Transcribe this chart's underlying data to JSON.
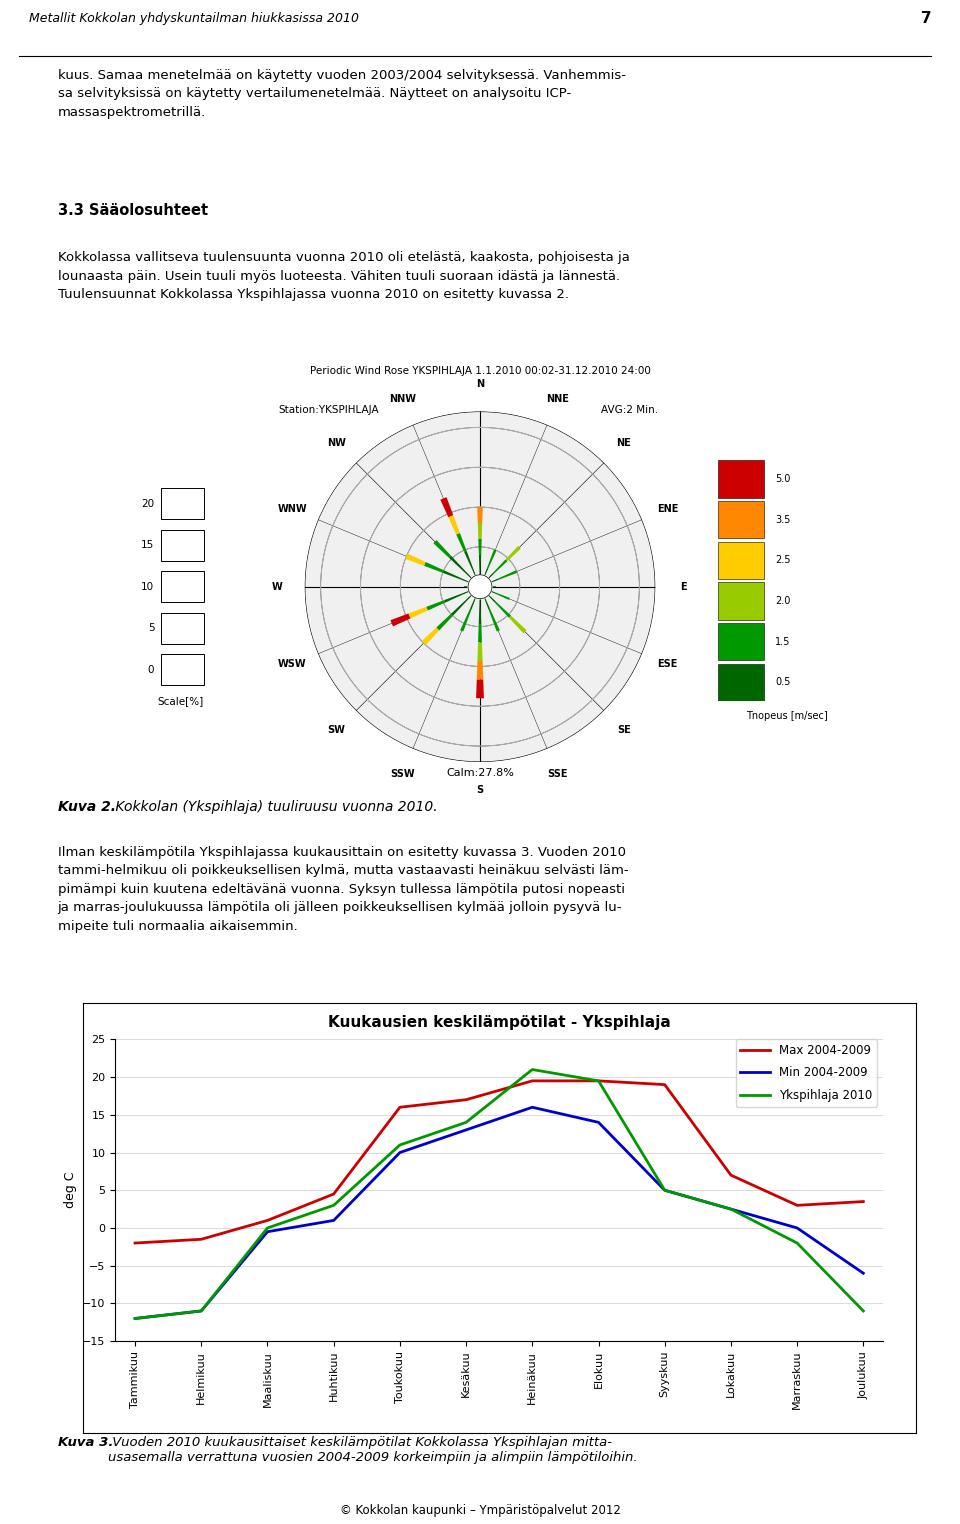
{
  "page_title": "Metallit Kokkolan yhdyskuntailman hiukkasissa 2010",
  "page_number": "7",
  "paragraph1": "kuus. Samaa menetelmää on käytetty vuoden 2003/2004 selvityksessä. Vanhemmis-\nsa selvityksissä on käytetty vertailumenetelmää. Näytteet on analysoitu ICP-\nmassaspektrometrillä.",
  "section_title": "3.3 Sääolosuhteet",
  "paragraph2": "Kokkolassa vallitseva tuulensuunta vuonna 2010 oli etelästä, kaakosta, pohjoisesta ja\nlounaasta päin. Usein tuuli myös luoteesta. Vähiten tuuli suoraan idästä ja lännestä.\nTuulensuunnat Kokkolassa Ykspihlajassa vuonna 2010 on esitetty kuvassa 2.",
  "wind_rose_title1": "Periodic Wind Rose YKSPIHLAJA 1.1.2010 00:02-31.12.2010 24:00",
  "wind_rose_title2": "Station:YKSPIHLAJA",
  "wind_rose_title3": "AVG:2 Min.",
  "wind_calm": "Calm:27.8%",
  "wind_scale_label": "Scale[%]",
  "wind_scale_values": [
    0,
    5,
    10,
    15,
    20
  ],
  "wind_speed_label": "Tnopeus [m/sec]",
  "wind_speed_values": [
    "5.0",
    "3.5",
    "2.5",
    "2.0",
    "1.5",
    "0.5"
  ],
  "wind_speed_colors": [
    "#cc0000",
    "#ff8800",
    "#ffcc00",
    "#99cc00",
    "#009900",
    "#006600"
  ],
  "kuva2_caption_bold": "Kuva 2.",
  "kuva2_caption_italic": " Kokkolan (Ykspihlaja) tuuliruusu vuonna 2010.",
  "paragraph3": "Ilman keskilämpötila Ykspihlajassa kuukausittain on esitetty kuvassa 3. Vuoden 2010\ntammi-helmikuu oli poikkeuksellisen kylmä, mutta vastaavasti heinäkuu selvästi läm-\npimämpi kuin kuutena edeltävänä vuonna. Syksyn tullessa lämpötila putosi nopeasti\nja marras-joulukuussa lämpötila oli jälleen poikkeuksellisen kylmää jolloin pysyvä lu-\nmipeite tuli normaalia aikaisemmin.",
  "chart_title": "Kuukausien keskilämpötilat - Ykspihlaja",
  "months": [
    "Tammikuu",
    "Helmikuu",
    "Maaliskuu",
    "Huhtikuu",
    "Toukokuu",
    "Kesäkuu",
    "Heinäkuu",
    "Elokuu",
    "Syyskuu",
    "Lokakuu",
    "Marraskuu",
    "Joulukuu"
  ],
  "max_data": [
    -2.0,
    -1.5,
    1.0,
    4.5,
    16.0,
    17.0,
    19.5,
    19.5,
    19.0,
    7.0,
    3.0,
    3.5
  ],
  "min_data": [
    -12.0,
    -11.0,
    -0.5,
    1.0,
    10.0,
    13.0,
    16.0,
    14.0,
    5.0,
    2.5,
    0.0,
    -6.0
  ],
  "ykspihlaja_data": [
    -12.0,
    -11.0,
    0.0,
    3.0,
    11.0,
    14.0,
    21.0,
    19.5,
    5.0,
    2.5,
    -2.0,
    -11.0
  ],
  "max_color": "#cc0000",
  "min_color": "#0000cc",
  "yks_color": "#009900",
  "legend_max": "Max 2004-2009",
  "legend_min": "Min 2004-2009",
  "legend_yks": "Ykspihlaja 2010",
  "ylabel_chart": "deg C",
  "ylim": [
    -15,
    25
  ],
  "yticks": [
    -15,
    -10,
    -5,
    0,
    5,
    10,
    15,
    20,
    25
  ],
  "kuva3_caption_bold": "Kuva 3.",
  "kuva3_caption_italic": " Vuoden 2010 kuukausittaiset keskilämpötilat Kokkolassa Ykspihlajan mitta-\nusasemalla verrattuna vuosien 2004-2009 korkeimpiin ja alimpiin lämpötiloihin.",
  "footer": "© Kokkolan kaupunki – Ympäristöpalvelut 2012",
  "bg_color": "#ffffff",
  "directions": [
    "N",
    "NNE",
    "NE",
    "ENE",
    "E",
    "ESE",
    "SE",
    "SSE",
    "S",
    "SSW",
    "SW",
    "WSW",
    "W",
    "WNW",
    "NW",
    "NNW"
  ],
  "wind_radii": [
    10,
    5,
    7,
    5,
    2,
    4,
    8,
    6,
    14,
    6,
    10,
    12,
    2,
    10,
    8,
    12
  ],
  "wind_bar_colors": [
    [
      "#006600",
      "#006600",
      "#009900",
      "#99cc00",
      "#ff8800"
    ],
    [
      "#006600",
      "#009900"
    ],
    [
      "#006600",
      "#009900",
      "#99cc00"
    ],
    [
      "#006600",
      "#009900"
    ],
    [
      "#006600"
    ],
    [
      "#006600",
      "#009900"
    ],
    [
      "#006600",
      "#009900",
      "#99cc00"
    ],
    [
      "#006600",
      "#009900"
    ],
    [
      "#006600",
      "#006600",
      "#009900",
      "#99cc00",
      "#ff8800",
      "#cc0000"
    ],
    [
      "#006600",
      "#009900"
    ],
    [
      "#006600",
      "#006600",
      "#009900",
      "#ffcc00"
    ],
    [
      "#006600",
      "#006600",
      "#009900",
      "#ffcc00",
      "#cc0000"
    ],
    [
      "#006600"
    ],
    [
      "#006600",
      "#006600",
      "#009900",
      "#ffcc00"
    ],
    [
      "#006600",
      "#006600",
      "#009900"
    ],
    [
      "#006600",
      "#006600",
      "#009900",
      "#ffcc00",
      "#cc0000"
    ]
  ]
}
